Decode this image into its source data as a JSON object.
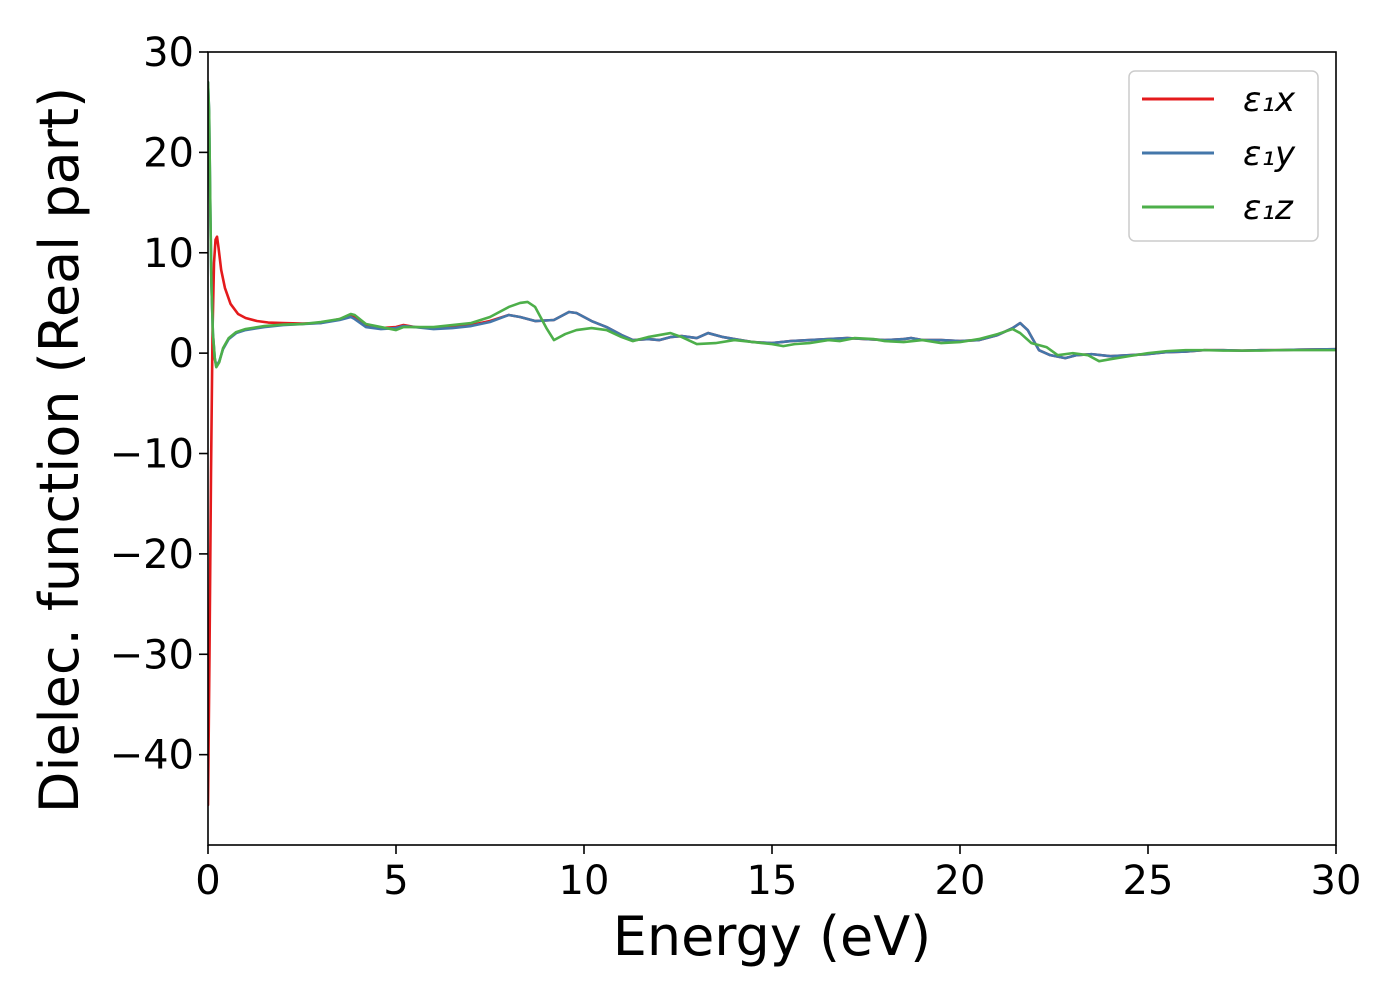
{
  "chart_data": {
    "type": "line",
    "xlabel": "Energy (eV)",
    "ylabel": "Dielec. function (Real part)",
    "xlim": [
      0,
      30
    ],
    "ylim": [
      -49,
      30
    ],
    "xticks": [
      0,
      5,
      10,
      15,
      20,
      25,
      30
    ],
    "yticks": [
      -40,
      -30,
      -20,
      -10,
      0,
      10,
      20,
      30
    ],
    "xtick_labels": [
      "0",
      "5",
      "10",
      "15",
      "20",
      "25",
      "30"
    ],
    "ytick_labels": [
      "−40",
      "−30",
      "−20",
      "−10",
      "0",
      "10",
      "20",
      "30"
    ],
    "grid": false,
    "legend_position": "top-right",
    "series": [
      {
        "name": "ε₁x",
        "color": "#e41a1c",
        "points": [
          [
            0,
            -45
          ],
          [
            0.04,
            -30
          ],
          [
            0.08,
            -12
          ],
          [
            0.12,
            2
          ],
          [
            0.16,
            9
          ],
          [
            0.2,
            11.3
          ],
          [
            0.24,
            11.6
          ],
          [
            0.28,
            10.5
          ],
          [
            0.35,
            8.3
          ],
          [
            0.45,
            6.5
          ],
          [
            0.6,
            4.9
          ],
          [
            0.8,
            3.9
          ],
          [
            1.0,
            3.5
          ],
          [
            1.3,
            3.2
          ],
          [
            1.6,
            3.05
          ],
          [
            2.0,
            3.0
          ],
          [
            2.5,
            2.95
          ],
          [
            3.0,
            3.0
          ],
          [
            3.5,
            3.4
          ],
          [
            3.8,
            3.7
          ],
          [
            3.9,
            3.6
          ],
          [
            4.2,
            2.8
          ],
          [
            4.6,
            2.5
          ],
          [
            5.0,
            2.6
          ],
          [
            5.2,
            2.8
          ],
          [
            5.5,
            2.6
          ],
          [
            6.0,
            2.5
          ],
          [
            6.5,
            2.6
          ],
          [
            7.0,
            2.8
          ],
          [
            7.5,
            3.2
          ],
          [
            8.0,
            3.8
          ],
          [
            8.3,
            3.6
          ],
          [
            8.7,
            3.2
          ],
          [
            9.2,
            3.3
          ],
          [
            9.6,
            4.1
          ],
          [
            9.8,
            4.0
          ],
          [
            10.2,
            3.2
          ],
          [
            10.6,
            2.6
          ],
          [
            11.0,
            1.8
          ],
          [
            11.3,
            1.3
          ],
          [
            11.7,
            1.4
          ],
          [
            12.0,
            1.3
          ],
          [
            12.3,
            1.6
          ],
          [
            12.6,
            1.7
          ],
          [
            13.0,
            1.5
          ],
          [
            13.3,
            2.0
          ],
          [
            13.7,
            1.6
          ],
          [
            14.0,
            1.4
          ],
          [
            14.5,
            1.1
          ],
          [
            15.0,
            1.0
          ],
          [
            15.5,
            1.2
          ],
          [
            16.0,
            1.3
          ],
          [
            16.5,
            1.4
          ],
          [
            17.0,
            1.5
          ],
          [
            17.5,
            1.4
          ],
          [
            18.0,
            1.3
          ],
          [
            18.5,
            1.4
          ],
          [
            18.7,
            1.5
          ],
          [
            19.0,
            1.3
          ],
          [
            19.5,
            1.3
          ],
          [
            20.0,
            1.2
          ],
          [
            20.5,
            1.3
          ],
          [
            21.0,
            1.8
          ],
          [
            21.4,
            2.5
          ],
          [
            21.6,
            3.0
          ],
          [
            21.8,
            2.3
          ],
          [
            22.1,
            0.3
          ],
          [
            22.4,
            -0.2
          ],
          [
            22.8,
            -0.5
          ],
          [
            23.1,
            -0.2
          ],
          [
            23.5,
            -0.1
          ],
          [
            24.0,
            -0.3
          ],
          [
            24.5,
            -0.2
          ],
          [
            25.0,
            -0.1
          ],
          [
            25.5,
            0.1
          ],
          [
            26.0,
            0.15
          ],
          [
            26.5,
            0.3
          ],
          [
            27.0,
            0.3
          ],
          [
            27.5,
            0.25
          ],
          [
            28.0,
            0.3
          ],
          [
            28.5,
            0.3
          ],
          [
            29.0,
            0.35
          ],
          [
            30.0,
            0.4
          ]
        ]
      },
      {
        "name": "ε₁y",
        "color": "#4477aa",
        "points": [
          [
            0,
            27
          ],
          [
            0.03,
            24
          ],
          [
            0.06,
            15
          ],
          [
            0.09,
            7
          ],
          [
            0.13,
            2
          ],
          [
            0.18,
            -0.5
          ],
          [
            0.22,
            -1.3
          ],
          [
            0.3,
            -0.8
          ],
          [
            0.4,
            0.4
          ],
          [
            0.55,
            1.4
          ],
          [
            0.75,
            2.0
          ],
          [
            1.0,
            2.3
          ],
          [
            1.5,
            2.6
          ],
          [
            2.0,
            2.8
          ],
          [
            2.5,
            2.9
          ],
          [
            3.0,
            3.0
          ],
          [
            3.5,
            3.3
          ],
          [
            3.8,
            3.6
          ],
          [
            3.9,
            3.4
          ],
          [
            4.2,
            2.6
          ],
          [
            4.6,
            2.4
          ],
          [
            5.0,
            2.5
          ],
          [
            5.2,
            2.7
          ],
          [
            5.5,
            2.6
          ],
          [
            6.0,
            2.4
          ],
          [
            6.5,
            2.5
          ],
          [
            7.0,
            2.7
          ],
          [
            7.5,
            3.1
          ],
          [
            8.0,
            3.8
          ],
          [
            8.3,
            3.6
          ],
          [
            8.7,
            3.2
          ],
          [
            9.2,
            3.3
          ],
          [
            9.6,
            4.1
          ],
          [
            9.8,
            4.0
          ],
          [
            10.2,
            3.2
          ],
          [
            10.6,
            2.6
          ],
          [
            11.0,
            1.8
          ],
          [
            11.3,
            1.3
          ],
          [
            11.7,
            1.4
          ],
          [
            12.0,
            1.3
          ],
          [
            12.3,
            1.6
          ],
          [
            12.6,
            1.7
          ],
          [
            13.0,
            1.5
          ],
          [
            13.3,
            2.0
          ],
          [
            13.7,
            1.6
          ],
          [
            14.0,
            1.4
          ],
          [
            14.5,
            1.1
          ],
          [
            15.0,
            1.0
          ],
          [
            15.5,
            1.2
          ],
          [
            16.0,
            1.3
          ],
          [
            16.5,
            1.4
          ],
          [
            17.0,
            1.5
          ],
          [
            17.5,
            1.4
          ],
          [
            18.0,
            1.3
          ],
          [
            18.5,
            1.4
          ],
          [
            18.7,
            1.5
          ],
          [
            19.0,
            1.3
          ],
          [
            19.5,
            1.3
          ],
          [
            20.0,
            1.2
          ],
          [
            20.5,
            1.3
          ],
          [
            21.0,
            1.8
          ],
          [
            21.4,
            2.5
          ],
          [
            21.6,
            3.0
          ],
          [
            21.8,
            2.3
          ],
          [
            22.1,
            0.3
          ],
          [
            22.4,
            -0.2
          ],
          [
            22.8,
            -0.5
          ],
          [
            23.1,
            -0.2
          ],
          [
            23.5,
            -0.1
          ],
          [
            24.0,
            -0.3
          ],
          [
            24.5,
            -0.2
          ],
          [
            25.0,
            -0.1
          ],
          [
            25.5,
            0.1
          ],
          [
            26.0,
            0.15
          ],
          [
            26.5,
            0.3
          ],
          [
            27.0,
            0.3
          ],
          [
            27.5,
            0.25
          ],
          [
            28.0,
            0.3
          ],
          [
            28.5,
            0.3
          ],
          [
            29.0,
            0.35
          ],
          [
            30.0,
            0.4
          ]
        ]
      },
      {
        "name": "ε₁z",
        "color": "#4daf4a",
        "points": [
          [
            0,
            27
          ],
          [
            0.03,
            24
          ],
          [
            0.06,
            15
          ],
          [
            0.09,
            7
          ],
          [
            0.13,
            2
          ],
          [
            0.18,
            -0.5
          ],
          [
            0.22,
            -1.4
          ],
          [
            0.3,
            -0.9
          ],
          [
            0.4,
            0.5
          ],
          [
            0.55,
            1.5
          ],
          [
            0.75,
            2.1
          ],
          [
            1.0,
            2.4
          ],
          [
            1.5,
            2.7
          ],
          [
            2.0,
            2.85
          ],
          [
            2.5,
            2.9
          ],
          [
            3.0,
            3.1
          ],
          [
            3.5,
            3.4
          ],
          [
            3.8,
            3.9
          ],
          [
            3.9,
            3.8
          ],
          [
            4.2,
            2.9
          ],
          [
            4.6,
            2.6
          ],
          [
            5.0,
            2.3
          ],
          [
            5.2,
            2.6
          ],
          [
            5.5,
            2.6
          ],
          [
            6.0,
            2.6
          ],
          [
            6.5,
            2.8
          ],
          [
            7.0,
            3.0
          ],
          [
            7.5,
            3.6
          ],
          [
            8.0,
            4.6
          ],
          [
            8.3,
            5.0
          ],
          [
            8.5,
            5.1
          ],
          [
            8.7,
            4.6
          ],
          [
            9.0,
            2.5
          ],
          [
            9.2,
            1.3
          ],
          [
            9.5,
            1.9
          ],
          [
            9.8,
            2.3
          ],
          [
            10.2,
            2.5
          ],
          [
            10.6,
            2.3
          ],
          [
            11.0,
            1.6
          ],
          [
            11.3,
            1.2
          ],
          [
            11.7,
            1.6
          ],
          [
            12.0,
            1.8
          ],
          [
            12.3,
            2.0
          ],
          [
            12.6,
            1.6
          ],
          [
            13.0,
            0.9
          ],
          [
            13.5,
            1.0
          ],
          [
            14.0,
            1.3
          ],
          [
            14.5,
            1.1
          ],
          [
            15.0,
            0.9
          ],
          [
            15.3,
            0.7
          ],
          [
            15.6,
            0.9
          ],
          [
            16.0,
            1.0
          ],
          [
            16.5,
            1.3
          ],
          [
            16.8,
            1.2
          ],
          [
            17.2,
            1.5
          ],
          [
            17.7,
            1.4
          ],
          [
            18.0,
            1.2
          ],
          [
            18.5,
            1.1
          ],
          [
            19.0,
            1.3
          ],
          [
            19.5,
            1.0
          ],
          [
            20.0,
            1.1
          ],
          [
            20.5,
            1.4
          ],
          [
            21.0,
            1.9
          ],
          [
            21.4,
            2.4
          ],
          [
            21.6,
            2.0
          ],
          [
            21.9,
            1.0
          ],
          [
            22.3,
            0.6
          ],
          [
            22.6,
            -0.2
          ],
          [
            23.0,
            0.0
          ],
          [
            23.4,
            -0.2
          ],
          [
            23.7,
            -0.8
          ],
          [
            24.0,
            -0.6
          ],
          [
            24.5,
            -0.3
          ],
          [
            25.0,
            0.0
          ],
          [
            25.5,
            0.2
          ],
          [
            26.0,
            0.3
          ],
          [
            26.5,
            0.3
          ],
          [
            27.0,
            0.25
          ],
          [
            27.5,
            0.25
          ],
          [
            28.0,
            0.25
          ],
          [
            28.5,
            0.3
          ],
          [
            29.0,
            0.3
          ],
          [
            30.0,
            0.3
          ]
        ]
      }
    ]
  }
}
